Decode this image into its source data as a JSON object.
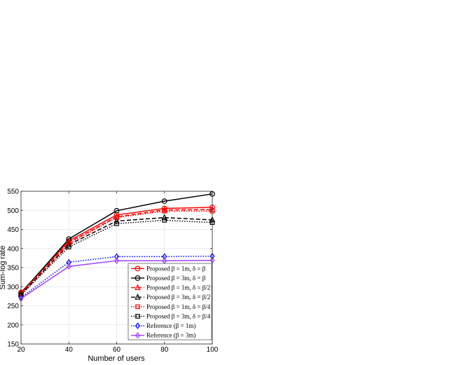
{
  "chart_data": {
    "type": "line",
    "title": "",
    "xlabel": "Number of users",
    "ylabel": "Sum-log rate",
    "x": [
      20,
      40,
      60,
      80,
      100
    ],
    "xticks": [
      20,
      40,
      60,
      80,
      100
    ],
    "yticks": [
      150,
      200,
      250,
      300,
      350,
      400,
      450,
      500,
      550
    ],
    "xlim": [
      20,
      100
    ],
    "ylim": [
      150,
      550
    ],
    "grid": true,
    "legend_position": "bottom-right",
    "series": [
      {
        "name": "Proposed β = 1m, δ = β",
        "values": [
          285,
          420,
          488,
          505,
          508
        ],
        "color": "#ff0000",
        "dash": "solid",
        "marker": "circle"
      },
      {
        "name": "Proposed β = 3m, δ = β",
        "values": [
          283,
          425,
          499,
          524,
          543
        ],
        "color": "#000000",
        "dash": "solid",
        "marker": "circle"
      },
      {
        "name": "Proposed β = 1m, δ = β/2",
        "values": [
          283,
          416,
          483,
          501,
          502
        ],
        "color": "#ff0000",
        "dash": "dashed",
        "marker": "triangle"
      },
      {
        "name": "Proposed β = 3m, δ = β/2",
        "values": [
          280,
          410,
          472,
          481,
          475
        ],
        "color": "#000000",
        "dash": "dashed",
        "marker": "triangle"
      },
      {
        "name": "Proposed β = 1m, δ = β/4",
        "values": [
          282,
          413,
          481,
          498,
          498
        ],
        "color": "#ff0000",
        "dash": "dotted",
        "marker": "square"
      },
      {
        "name": "Proposed β = 3m, δ = β/4",
        "values": [
          278,
          404,
          465,
          474,
          468
        ],
        "color": "#000000",
        "dash": "dotted",
        "marker": "square"
      },
      {
        "name": "Reference (β = 1m)",
        "values": [
          272,
          364,
          379,
          379,
          380
        ],
        "color": "#0000ff",
        "dash": "dotted",
        "marker": "diamond"
      },
      {
        "name": "Reference (β = 3m)",
        "values": [
          269,
          353,
          368,
          368,
          369
        ],
        "color": "#a040ff",
        "dash": "solid",
        "marker": "diamond"
      }
    ]
  }
}
